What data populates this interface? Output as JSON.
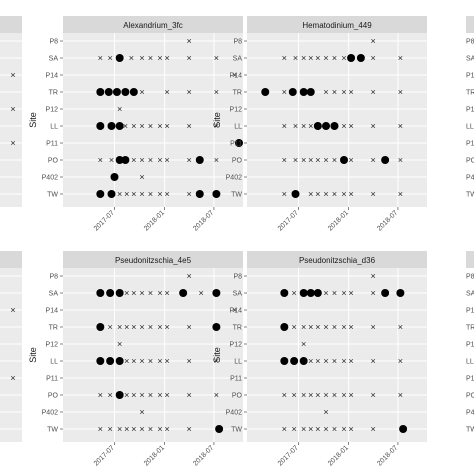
{
  "colors": {
    "panel_bg": "#ebebeb",
    "strip_bg": "#d9d9d9",
    "grid": "#ffffff",
    "point": "#000000",
    "cross": "#333333"
  },
  "chart_data": [
    {
      "type": "scatter",
      "title": "Alexandrium_3fc",
      "ylabel": "Site",
      "sites": [
        "P8",
        "SA",
        "P14",
        "TR",
        "P12",
        "LL",
        "P11",
        "PO",
        "P402",
        "TW"
      ],
      "x_ticks": [
        "2017-07",
        "2018-01",
        "2018-07"
      ],
      "x_range": [
        "2017-01-15",
        "2018-10-01"
      ],
      "presence": [
        {
          "site": "SA",
          "dates": [
            "2017-07-20"
          ]
        },
        {
          "site": "TR",
          "dates": [
            "2017-05-10",
            "2017-06-10",
            "2017-07-10",
            "2017-08-10",
            "2017-09-10"
          ]
        },
        {
          "site": "LL",
          "dates": [
            "2017-05-10",
            "2017-06-20",
            "2017-07-20"
          ]
        },
        {
          "site": "P11",
          "dates": [
            "2018-10-01"
          ]
        },
        {
          "site": "PO",
          "dates": [
            "2017-07-20",
            "2017-08-10",
            "2018-05-10"
          ]
        },
        {
          "site": "P402",
          "dates": [
            "2017-07-01"
          ]
        },
        {
          "site": "TW",
          "dates": [
            "2017-05-10",
            "2017-06-20",
            "2018-05-10",
            "2018-07-10"
          ]
        }
      ],
      "absence": [
        {
          "site": "P8",
          "dates": [
            "2018-04-01"
          ]
        },
        {
          "site": "SA",
          "dates": [
            "2017-05-10",
            "2017-06-15",
            "2017-09-01",
            "2017-10-10",
            "2017-11-10",
            "2017-12-15",
            "2018-01-10",
            "2018-04-01",
            "2018-07-10"
          ]
        },
        {
          "site": "P14",
          "dates": [
            "2018-09-15"
          ]
        },
        {
          "site": "TR",
          "dates": [
            "2017-10-10",
            "2018-01-10",
            "2018-04-01",
            "2018-07-10"
          ]
        },
        {
          "site": "P12",
          "dates": [
            "2017-07-20"
          ]
        },
        {
          "site": "LL",
          "dates": [
            "2017-08-10",
            "2017-09-10",
            "2017-10-10",
            "2017-11-10",
            "2017-12-15",
            "2018-01-10",
            "2018-04-01",
            "2018-07-10"
          ]
        },
        {
          "site": "PO",
          "dates": [
            "2017-05-10",
            "2017-06-20",
            "2017-09-10",
            "2017-10-10",
            "2017-11-10",
            "2017-12-15",
            "2018-01-10",
            "2018-04-01",
            "2018-07-10"
          ]
        },
        {
          "site": "P402",
          "dates": [
            "2017-10-10"
          ]
        },
        {
          "site": "TW",
          "dates": [
            "2017-07-20",
            "2017-08-15",
            "2017-09-10",
            "2017-10-10",
            "2017-11-10",
            "2017-12-15",
            "2018-01-10",
            "2018-04-01"
          ]
        }
      ]
    },
    {
      "type": "scatter",
      "title": "Hematodinium_449",
      "ylabel": "Site",
      "sites": [
        "P8",
        "SA",
        "P14",
        "TR",
        "P12",
        "LL",
        "P11",
        "PO",
        "P402",
        "TW"
      ],
      "x_ticks": [
        "2017-07",
        "2018-01",
        "2018-07"
      ],
      "x_range": [
        "2017-01-15",
        "2018-10-01"
      ],
      "presence": [
        {
          "site": "SA",
          "dates": [
            "2018-01-10",
            "2018-02-15"
          ]
        },
        {
          "site": "TR",
          "dates": [
            "2017-03-01",
            "2017-06-10",
            "2017-07-20",
            "2017-08-15"
          ]
        },
        {
          "site": "LL",
          "dates": [
            "2017-09-10",
            "2017-10-10",
            "2017-11-10"
          ]
        },
        {
          "site": "PO",
          "dates": [
            "2017-12-15",
            "2018-05-15"
          ]
        },
        {
          "site": "TW",
          "dates": [
            "2017-06-20"
          ]
        }
      ],
      "absence": [
        {
          "site": "P8",
          "dates": [
            "2018-04-01"
          ]
        },
        {
          "site": "SA",
          "dates": [
            "2017-05-10",
            "2017-06-20",
            "2017-07-20",
            "2017-08-15",
            "2017-09-10",
            "2017-10-10",
            "2017-11-10",
            "2017-12-15",
            "2018-04-01",
            "2018-07-10"
          ]
        },
        {
          "site": "TR",
          "dates": [
            "2017-05-10",
            "2017-10-10",
            "2017-11-10",
            "2017-12-15",
            "2018-01-10",
            "2018-04-01",
            "2018-07-10"
          ]
        },
        {
          "site": "LL",
          "dates": [
            "2017-05-10",
            "2017-06-20",
            "2017-07-20",
            "2017-08-15",
            "2017-12-15",
            "2018-01-10",
            "2018-04-01",
            "2018-07-10"
          ]
        },
        {
          "site": "PO",
          "dates": [
            "2017-05-10",
            "2017-06-20",
            "2017-07-20",
            "2017-08-15",
            "2017-09-10",
            "2017-10-10",
            "2017-11-10",
            "2018-01-10",
            "2018-04-01",
            "2018-07-10"
          ]
        },
        {
          "site": "TW",
          "dates": [
            "2017-05-10",
            "2017-08-15",
            "2017-09-10",
            "2017-10-10",
            "2017-11-10",
            "2017-12-15",
            "2018-01-10",
            "2018-04-01",
            "2018-07-10"
          ]
        }
      ]
    },
    {
      "type": "scatter",
      "title": "Pseudonitzschia_4e5",
      "ylabel": "Site",
      "sites": [
        "P8",
        "SA",
        "P14",
        "TR",
        "P12",
        "LL",
        "P11",
        "PO",
        "P402",
        "TW"
      ],
      "x_ticks": [
        "2017-07",
        "2018-01",
        "2018-07"
      ],
      "x_range": [
        "2017-01-15",
        "2018-10-01"
      ],
      "presence": [
        {
          "site": "SA",
          "dates": [
            "2017-05-10",
            "2017-06-15",
            "2017-07-20",
            "2018-03-10",
            "2018-07-10"
          ]
        },
        {
          "site": "TR",
          "dates": [
            "2017-05-10",
            "2018-07-10"
          ]
        },
        {
          "site": "LL",
          "dates": [
            "2017-05-10",
            "2017-06-15",
            "2017-07-20"
          ]
        },
        {
          "site": "PO",
          "dates": [
            "2017-07-20"
          ]
        },
        {
          "site": "TW",
          "dates": [
            "2018-07-20"
          ]
        }
      ],
      "absence": [
        {
          "site": "P8",
          "dates": [
            "2018-04-01"
          ]
        },
        {
          "site": "SA",
          "dates": [
            "2017-08-15",
            "2017-09-10",
            "2017-10-10",
            "2017-11-10",
            "2017-12-15",
            "2018-01-10",
            "2018-05-15"
          ]
        },
        {
          "site": "P14",
          "dates": [
            "2018-09-15"
          ]
        },
        {
          "site": "TR",
          "dates": [
            "2017-06-15",
            "2017-07-20",
            "2017-08-15",
            "2017-09-10",
            "2017-10-10",
            "2017-11-10",
            "2017-12-15",
            "2018-01-10",
            "2018-04-01"
          ]
        },
        {
          "site": "P12",
          "dates": [
            "2017-07-20"
          ]
        },
        {
          "site": "LL",
          "dates": [
            "2017-08-15",
            "2017-09-10",
            "2017-10-10",
            "2017-11-10",
            "2017-12-15",
            "2018-01-10",
            "2018-04-01",
            "2018-07-10"
          ]
        },
        {
          "site": "PO",
          "dates": [
            "2017-05-10",
            "2017-06-15",
            "2017-08-15",
            "2017-09-10",
            "2017-10-10",
            "2017-11-10",
            "2017-12-15",
            "2018-01-10",
            "2018-04-01",
            "2018-07-10"
          ]
        },
        {
          "site": "P402",
          "dates": [
            "2017-10-10"
          ]
        },
        {
          "site": "TW",
          "dates": [
            "2017-05-10",
            "2017-06-15",
            "2017-07-20",
            "2017-08-15",
            "2017-09-10",
            "2017-10-10",
            "2017-11-10",
            "2017-12-15",
            "2018-01-10",
            "2018-04-01"
          ]
        }
      ]
    },
    {
      "type": "scatter",
      "title": "Pseudonitzschia_d36",
      "ylabel": "Site",
      "sites": [
        "P8",
        "SA",
        "P14",
        "TR",
        "P12",
        "LL",
        "P11",
        "PO",
        "P402",
        "TW"
      ],
      "x_ticks": [
        "2017-07",
        "2018-01",
        "2018-07"
      ],
      "x_range": [
        "2017-01-15",
        "2018-10-01"
      ],
      "presence": [
        {
          "site": "SA",
          "dates": [
            "2017-05-10",
            "2017-07-20",
            "2017-08-15",
            "2017-09-10",
            "2018-05-15",
            "2018-07-10"
          ]
        },
        {
          "site": "TR",
          "dates": [
            "2017-05-10"
          ]
        },
        {
          "site": "LL",
          "dates": [
            "2017-05-10",
            "2017-06-15",
            "2017-07-20"
          ]
        },
        {
          "site": "TW",
          "dates": [
            "2018-07-20"
          ]
        }
      ],
      "absence": [
        {
          "site": "P8",
          "dates": [
            "2018-04-01"
          ]
        },
        {
          "site": "SA",
          "dates": [
            "2017-06-15",
            "2017-10-10",
            "2017-11-10",
            "2017-12-15",
            "2018-01-10",
            "2018-04-01"
          ]
        },
        {
          "site": "TR",
          "dates": [
            "2017-06-15",
            "2017-07-20",
            "2017-08-15",
            "2017-09-10",
            "2017-10-10",
            "2017-11-10",
            "2017-12-15",
            "2018-01-10",
            "2018-04-01",
            "2018-07-10"
          ]
        },
        {
          "site": "P12",
          "dates": [
            "2017-07-20"
          ]
        },
        {
          "site": "LL",
          "dates": [
            "2017-08-15",
            "2017-09-10",
            "2017-10-10",
            "2017-11-10",
            "2017-12-15",
            "2018-01-10",
            "2018-04-01",
            "2018-07-10"
          ]
        },
        {
          "site": "PO",
          "dates": [
            "2017-05-10",
            "2017-06-15",
            "2017-07-20",
            "2017-08-15",
            "2017-09-10",
            "2017-10-10",
            "2017-11-10",
            "2017-12-15",
            "2018-01-10",
            "2018-04-01",
            "2018-07-10"
          ]
        },
        {
          "site": "P402",
          "dates": [
            "2017-10-10"
          ]
        },
        {
          "site": "TW",
          "dates": [
            "2017-05-10",
            "2017-06-15",
            "2017-07-20",
            "2017-08-15",
            "2017-09-10",
            "2017-10-10",
            "2017-11-10",
            "2017-12-15",
            "2018-01-10",
            "2018-04-01"
          ]
        }
      ]
    }
  ],
  "cut_panels": {
    "left": [
      {
        "cross_sites": [
          "P14",
          "P12",
          "P11"
        ]
      },
      {
        "cross_sites": [
          "P14",
          "P11"
        ]
      }
    ],
    "right": [
      {
        "labels": [
          "P8",
          "SA",
          "P14",
          "TR",
          "P12",
          "LL",
          "P11",
          "PO",
          "P402",
          "TW"
        ]
      },
      {
        "labels": [
          "P8",
          "SA",
          "P14",
          "TR",
          "P12",
          "LL",
          "P11",
          "PO",
          "P402",
          "TW"
        ]
      }
    ]
  }
}
